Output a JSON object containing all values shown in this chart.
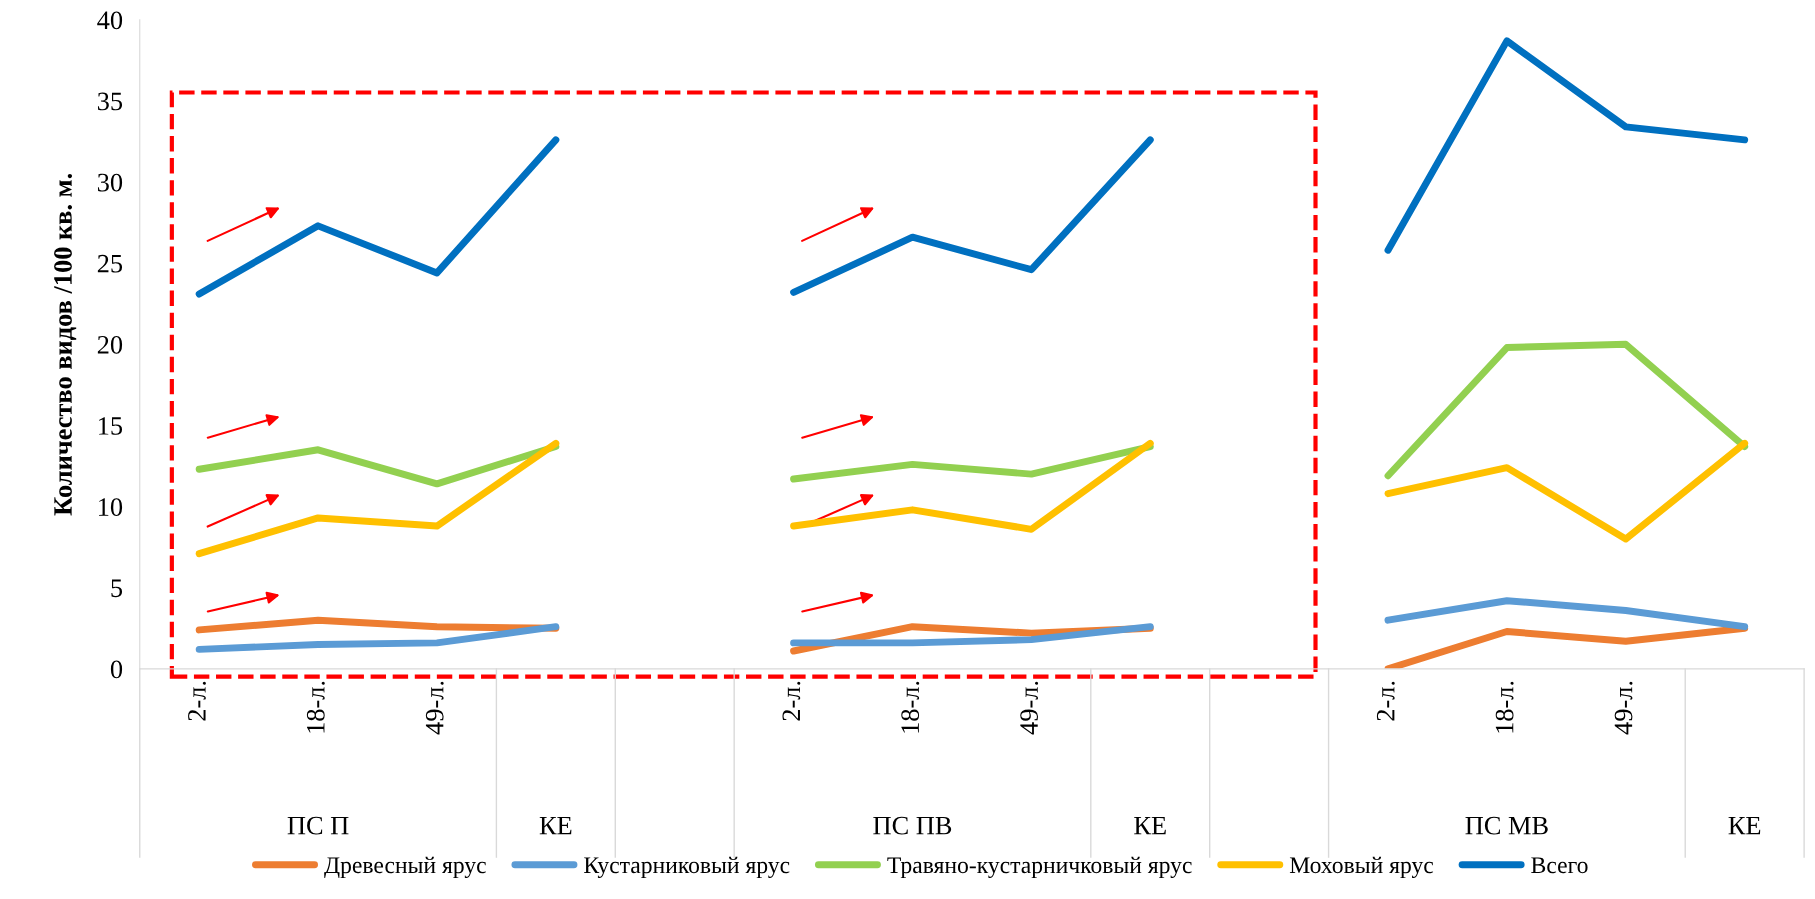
{
  "chart_data": {
    "type": "line",
    "ylabel": "Количество видов /100 кв. м.",
    "categories": [
      "2-л.",
      "18-л.",
      "49-л.",
      null,
      null,
      "2-л.",
      "18-л.",
      "49-л.",
      null,
      null,
      "2-л.",
      "18-л.",
      "49-л.",
      null
    ],
    "annotations": [
      "ПС П",
      "КЕ",
      "ПС ПВ",
      "КЕ",
      "ПС МВ",
      "КЕ"
    ],
    "series": [
      {
        "name": "Древесный ярус",
        "color": "#ed7d31",
        "values": [
          2.4,
          3.0,
          2.6,
          2.5,
          null,
          1.1,
          2.6,
          2.2,
          2.5,
          null,
          0,
          2.3,
          1.7,
          2.5
        ]
      },
      {
        "name": "Кустарниковый ярус",
        "color": "#5b9bd5",
        "values": [
          1.2,
          1.5,
          1.6,
          2.6,
          null,
          1.6,
          1.6,
          1.8,
          2.6,
          null,
          3.0,
          4.2,
          3.6,
          2.6
        ]
      },
      {
        "name": "Травяно-кустарничковый ярус",
        "color": "#92d050",
        "values": [
          12.3,
          13.5,
          11.4,
          13.7,
          null,
          11.7,
          12.6,
          12.0,
          13.7,
          null,
          11.9,
          19.8,
          20.0,
          13.7
        ]
      },
      {
        "name": "Моховый ярус",
        "color": "#ffc000",
        "values": [
          7.1,
          9.3,
          8.8,
          13.9,
          null,
          8.8,
          9.8,
          8.6,
          13.9,
          null,
          10.8,
          12.4,
          8.0,
          13.9
        ]
      },
      {
        "name": "Всего",
        "color": "#0070c0",
        "values": [
          23.1,
          27.3,
          24.4,
          32.6,
          null,
          23.2,
          26.6,
          24.6,
          32.6,
          null,
          25.8,
          38.7,
          33.4,
          32.6
        ]
      }
    ],
    "ylim": [
      0,
      40
    ],
    "yticks": [
      0,
      5,
      10,
      15,
      20,
      25,
      30,
      35,
      40
    ],
    "grid": false,
    "legend": "bottom",
    "marker": "none",
    "line_style": "solid"
  }
}
